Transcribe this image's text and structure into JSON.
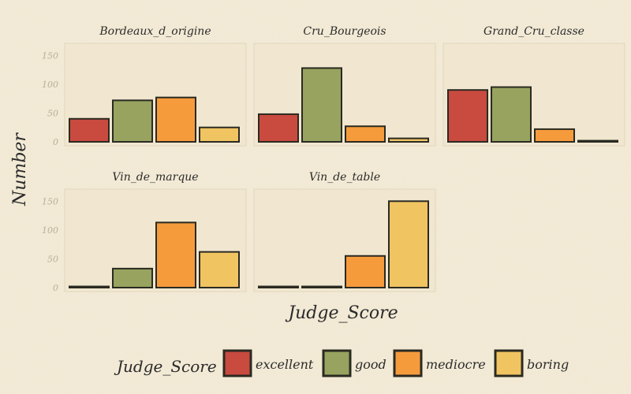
{
  "chart_data": {
    "type": "bar",
    "facet_by": "Wine Type",
    "xlabel": "Judge_Score",
    "ylabel": "Number",
    "ylim": [
      0,
      160
    ],
    "yticks": [
      0,
      50,
      100,
      150
    ],
    "grid": false,
    "legend_position": "bottom",
    "legend_title": "Judge_Score",
    "categories": [
      "excellent",
      "good",
      "mediocre",
      "boring"
    ],
    "colors": {
      "excellent": "#c94a3f",
      "good": "#97a35f",
      "mediocre": "#f69b3c",
      "boring": "#f1c462"
    },
    "panels": [
      {
        "title": "Bordeaux_d_origine",
        "values": [
          40,
          72,
          77,
          25
        ]
      },
      {
        "title": "Cru_Bourgeois",
        "values": [
          48,
          128,
          27,
          6
        ]
      },
      {
        "title": "Grand_Cru_classe",
        "values": [
          90,
          95,
          22,
          2
        ]
      },
      {
        "title": "Vin_de_marque",
        "values": [
          2,
          33,
          113,
          62
        ]
      },
      {
        "title": "Vin_de_table",
        "values": [
          2,
          2,
          55,
          150
        ]
      }
    ]
  }
}
